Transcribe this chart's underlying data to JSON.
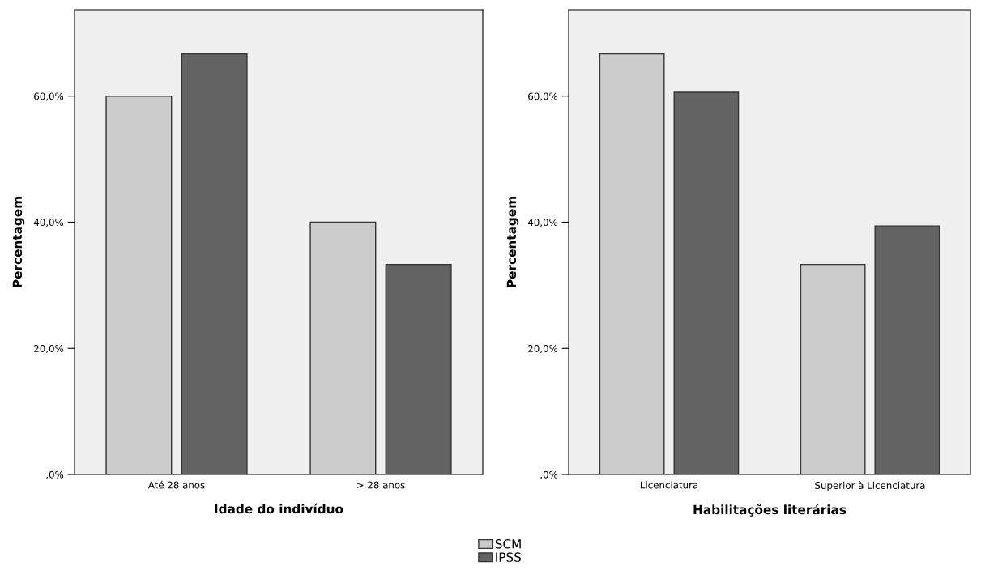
{
  "chart_data": [
    {
      "type": "bar",
      "xlabel": "Idade do indivíduo",
      "ylabel": "Percentagem",
      "categories": [
        "Até 28 anos",
        "> 28 anos"
      ],
      "series": [
        {
          "name": "SCM",
          "color": "#cccccc",
          "values": [
            60.0,
            40.0
          ]
        },
        {
          "name": "IPSS",
          "color": "#636363",
          "values": [
            66.7,
            33.3
          ]
        }
      ],
      "ylim": [
        0,
        73.7
      ],
      "yticks": [
        {
          "value": 0,
          "label": ",0%"
        },
        {
          "value": 20,
          "label": "20,0%"
        },
        {
          "value": 40,
          "label": "40,0%"
        },
        {
          "value": 60,
          "label": "60,0%"
        }
      ],
      "grid": false,
      "legend": "bottom"
    },
    {
      "type": "bar",
      "xlabel": "Habilitações literárias",
      "ylabel": "Percentagem",
      "categories": [
        "Licenciatura",
        "Superior à Licenciatura"
      ],
      "series": [
        {
          "name": "SCM",
          "color": "#cccccc",
          "values": [
            66.7,
            33.3
          ]
        },
        {
          "name": "IPSS",
          "color": "#636363",
          "values": [
            60.6,
            39.4
          ]
        }
      ],
      "ylim": [
        0,
        73.7
      ],
      "yticks": [
        {
          "value": 0,
          "label": ",0%"
        },
        {
          "value": 20,
          "label": "20,0%"
        },
        {
          "value": 40,
          "label": "40,0%"
        },
        {
          "value": 60,
          "label": "60,0%"
        }
      ],
      "grid": false
    }
  ]
}
